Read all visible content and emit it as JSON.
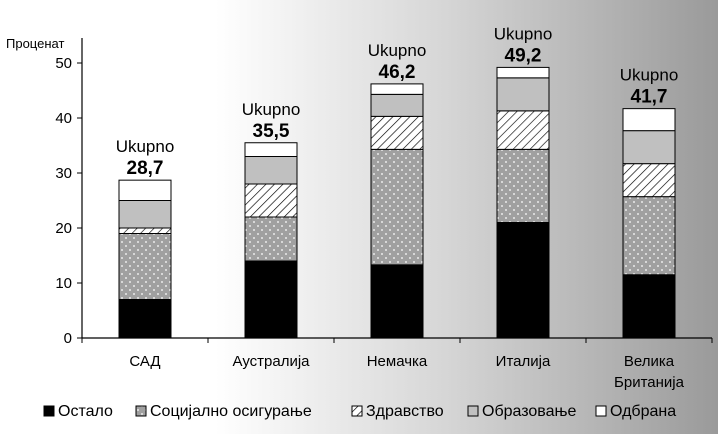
{
  "chart_data": {
    "type": "bar",
    "stacked": true,
    "ylabel": "Проценат",
    "ylim": [
      0,
      55
    ],
    "yticks": [
      0,
      10,
      20,
      30,
      40,
      50
    ],
    "categories": [
      "САД",
      "Аустралија",
      "Немачка",
      "Италија",
      "Велика Британија"
    ],
    "category_lines": [
      [
        "САД"
      ],
      [
        "Аустралија"
      ],
      [
        "Немачка"
      ],
      [
        "Италија"
      ],
      [
        "Велика",
        "Британија"
      ]
    ],
    "totals_label": "Ukupno",
    "totals": [
      "28,7",
      "35,5",
      "46,2",
      "49,2",
      "41,7"
    ],
    "series": [
      {
        "name": "Остало",
        "values": [
          7.0,
          14.0,
          13.3,
          21.0,
          11.5
        ],
        "color": "#000000",
        "pattern": "solid"
      },
      {
        "name": "Социјално осигурање",
        "values": [
          12.0,
          8.0,
          21.0,
          13.3,
          14.2
        ],
        "color": "#a0a0a0",
        "pattern": "dots"
      },
      {
        "name": "Здравство",
        "values": [
          1.0,
          6.0,
          6.0,
          7.0,
          6.0
        ],
        "color": "#ffffff",
        "pattern": "hatch"
      },
      {
        "name": "Образовање",
        "values": [
          5.0,
          5.0,
          4.0,
          6.0,
          6.0
        ],
        "color": "#c0c0c0",
        "pattern": "solid"
      },
      {
        "name": "Одбрана",
        "values": [
          3.7,
          2.5,
          1.9,
          1.9,
          4.0
        ],
        "color": "#ffffff",
        "pattern": "solid"
      }
    ],
    "legend_position": "bottom",
    "grid": false,
    "background": "gradient"
  }
}
